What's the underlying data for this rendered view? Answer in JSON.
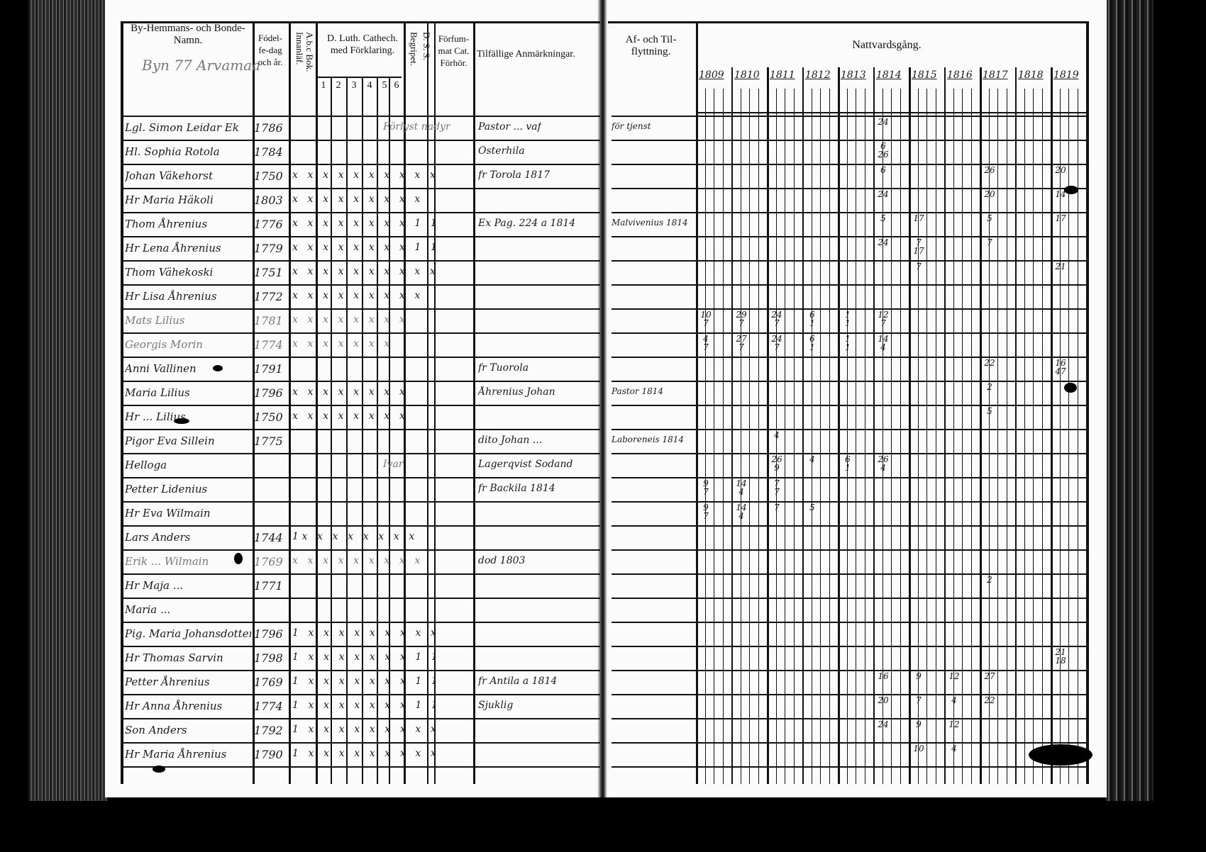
{
  "left_page": {
    "headers": {
      "name": "By-Hemmans- och Bonde-Namn.",
      "birth": "Fódel-fe-dag och år.",
      "abc": "A.b.c Bok. Innanläf.",
      "catechism": "D. Luth. Cathech. med Förklaring.",
      "catechism_parts": [
        "1",
        "2",
        "3",
        "4",
        "5",
        "6"
      ],
      "begripet": "Begripet.",
      "dss": "D. S. S.",
      "forsummat": "Förfum-mat Cat. Förhör.",
      "remarks": "Tilfällige Anmärkningar."
    },
    "village_note": "Byn 77 Arvamaa"
  },
  "right_page": {
    "headers": {
      "moving": "Af- och Til-flyttning.",
      "communion": "Nattvardsgång."
    },
    "years": [
      "1809",
      "1810",
      "1811",
      "1812",
      "1813",
      "1814",
      "1815",
      "1816",
      "1817",
      "1818",
      "1819"
    ]
  },
  "rows": [
    {
      "name": "Lgl. Simon Leidar Ek",
      "birth": "1786",
      "marks": "",
      "cat_note": "Förlyst nadyr",
      "remarks": "Pastor ... vaf",
      "moving": "för tjenst",
      "communion": {
        "1814": "24"
      }
    },
    {
      "name": "Hl. Sophia Rotola",
      "birth": "1784",
      "marks": "",
      "remarks": "Österhila",
      "communion": {
        "1814": "6\n26"
      }
    },
    {
      "name": "Johan Väkehorst",
      "birth": "1750",
      "marks": "x x x x x x x x x x",
      "remarks": "fr Torola 1817",
      "communion": {
        "1814": "6",
        "1817": "26",
        "1819": "20"
      }
    },
    {
      "name": "Hr Maria Häkoli",
      "birth": "1803",
      "marks": "x x x x x x x x x",
      "communion": {
        "1814": "24",
        "1817": "20",
        "1819": "14"
      }
    },
    {
      "name": "Thom Åhrenius",
      "birth": "1776",
      "marks": "x x x x x x x x 1 1",
      "remarks": "Ex Pag. 224 a 1814",
      "moving": "Malvivenius 1814",
      "communion": {
        "1814": "5",
        "1815": "17",
        "1817": "5",
        "1819": "17"
      }
    },
    {
      "name": "Hr Lena Åhrenius",
      "birth": "1779",
      "marks": "x x x x x x x x 1 1",
      "communion": {
        "1814": "24",
        "1815": "7\n17",
        "1817": "7"
      }
    },
    {
      "name": "Thom Vähekoski",
      "birth": "1751",
      "marks": "x x x x x x x x x x",
      "communion": {
        "1815": "7",
        "1819": "21"
      }
    },
    {
      "name": "Hr Lisa Åhrenius",
      "birth": "1772",
      "marks": "x x x x x x x x x",
      "communion": {}
    },
    {
      "name": "Mats Lilius",
      "birth": "1781",
      "marks": "x x x x x x x x",
      "faint": true,
      "communion": {
        "1809": "10\n7",
        "1810": "29\n7",
        "1811": "24\n7",
        "1812": "6\n1",
        "1813": "1\n1",
        "1814": "12\n7"
      }
    },
    {
      "name": "Georgis Morin",
      "birth": "1774",
      "marks": "x x x x x x x",
      "faint": true,
      "communion": {
        "1809": "4\n7",
        "1810": "27\n7",
        "1811": "24\n7",
        "1812": "6\n1",
        "1813": "1\n1",
        "1814": "14\n4"
      }
    },
    {
      "name": "Anni Vallinen",
      "birth": "1791",
      "marks": "",
      "remarks": "fr Tuorola",
      "communion": {
        "1817": "22",
        "1819": "16\n47"
      }
    },
    {
      "name": "Maria Lilius",
      "birth": "1796",
      "marks": "x x x x x x x x",
      "remarks": "Åhrenius Johan",
      "moving": "Pastor 1814",
      "communion": {
        "1817": "2"
      }
    },
    {
      "name": "Hr ... Lilius",
      "birth": "1750",
      "marks": "x x x x x x x x",
      "communion": {
        "1817": "5"
      }
    },
    {
      "name": "Pigor Eva Sillein",
      "birth": "1775",
      "marks": "",
      "remarks": "dito Johan ...",
      "moving": "Laboreneis 1814",
      "communion": {
        "1811": "4"
      }
    },
    {
      "name": "Helloga",
      "birth": "",
      "marks": "",
      "cat_note": "Ivar",
      "remarks": "Lagerqvist Sodand",
      "communion": {
        "1811": "26\n9",
        "1812": "4",
        "1813": "6\n1",
        "1814": "26\n4"
      }
    },
    {
      "name": "Petter Lidenius",
      "birth": "",
      "marks": "",
      "remarks": "fr Backila 1814",
      "communion": {
        "1809": "9\n7",
        "1810": "14\n4",
        "1811": "7\n7"
      }
    },
    {
      "name": "Hr Eva Wilmain",
      "birth": "",
      "marks": "",
      "communion": {
        "1809": "9\n7",
        "1810": "14\n4",
        "1811": "7",
        "1812": "5"
      }
    },
    {
      "name": "Lars Anders",
      "birth": "1744",
      "marks": "1x x x x x x x x",
      "communion": {}
    },
    {
      "name": "Erik ... Wilmain",
      "birth": "1769",
      "marks": "x x x x x x x x x",
      "faint": true,
      "remarks": "dod 1803",
      "communion": {}
    },
    {
      "name": "Hr Maja ...",
      "birth": "1771",
      "marks": "",
      "communion": {
        "1817": "2"
      }
    },
    {
      "name": "Maria ...",
      "birth": "",
      "marks": "",
      "communion": {}
    },
    {
      "name": "Pig. Maria Johansdotter Ullmain",
      "birth": "1796",
      "marks": "1 x x x x x x x x x",
      "communion": {}
    },
    {
      "name": "Hr Thomas Sarvin",
      "birth": "1798",
      "marks": "1 x x x x x x x 1 1",
      "communion": {
        "1819": "21\n18"
      }
    },
    {
      "name": "Petter Åhrenius",
      "birth": "1769",
      "marks": "1 x x x x x x x 1 1",
      "remarks": "fr Antila a 1814",
      "communion": {
        "1814": "16",
        "1815": "9",
        "1816": "12",
        "1817": "27"
      }
    },
    {
      "name": "Hr Anna Åhrenius",
      "birth": "1774",
      "marks": "1 x x x x x x x 1 1",
      "remarks": "Sjuklig",
      "communion": {
        "1814": "20",
        "1815": "7",
        "1816": "4",
        "1817": "22"
      }
    },
    {
      "name": "Son Anders",
      "birth": "1792",
      "marks": "1 x x x x x x x x x",
      "communion": {
        "1814": "24",
        "1815": "9",
        "1816": "12"
      }
    },
    {
      "name": "Hr Maria Åhrenius",
      "birth": "1790",
      "marks": "1 x x x x x x x x x",
      "communion": {
        "1815": "10",
        "1816": "4"
      }
    }
  ],
  "colors": {
    "ink": "#111111",
    "paper": "#fbfbfb",
    "background": "#000000"
  }
}
